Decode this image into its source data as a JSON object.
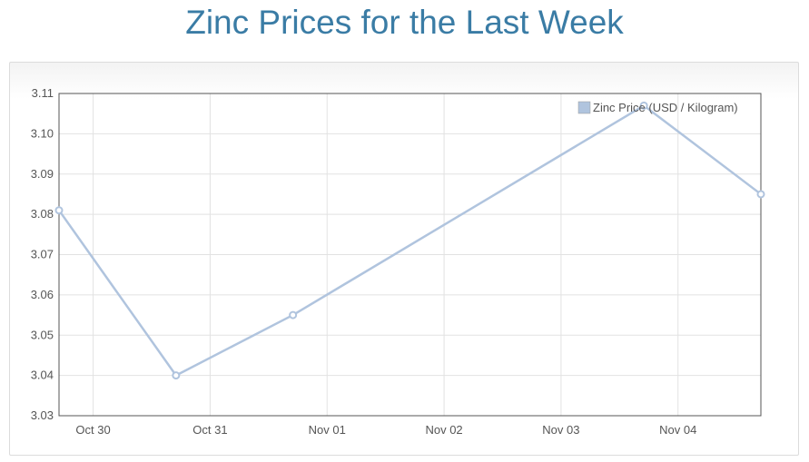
{
  "page": {
    "title": "Zinc Prices for the Last Week"
  },
  "chart_data": {
    "type": "line",
    "title": "Zinc Prices for the Last Week",
    "xlabel": "",
    "ylabel": "",
    "x_tick_labels": [
      "Oct 30",
      "Oct 31",
      "Nov 01",
      "Nov 02",
      "Nov 03",
      "Nov 04"
    ],
    "xlim": [
      "2023-10-29 17:00",
      "2023-11-04 17:00"
    ],
    "ylim": [
      3.03,
      3.11
    ],
    "y_ticks": [
      "3.03",
      "3.04",
      "3.05",
      "3.06",
      "3.07",
      "3.08",
      "3.09",
      "3.10",
      "3.11"
    ],
    "grid": true,
    "legend_position": "top-right",
    "series": [
      {
        "name": "Zinc Price (USD / Kilogram)",
        "color": "#b0c4de",
        "points": [
          {
            "x": "2023-10-29 17:00",
            "y": 3.081
          },
          {
            "x": "2023-10-30 17:00",
            "y": 3.04
          },
          {
            "x": "2023-10-31 17:00",
            "y": 3.055
          },
          {
            "x": "2023-11-03 17:00",
            "y": 3.107
          },
          {
            "x": "2023-11-04 17:00",
            "y": 3.085
          }
        ]
      }
    ]
  }
}
